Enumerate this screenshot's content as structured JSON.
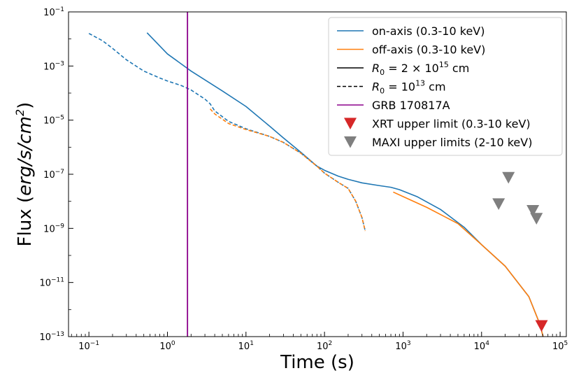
{
  "chart_data": {
    "type": "line",
    "xlabel": "Time (s)",
    "ylabel_prefix": "Flux (",
    "ylabel_unit": "erg/s/cm",
    "ylabel_exp": "2",
    "ylabel_suffix": ")",
    "xscale": "log",
    "yscale": "log",
    "xlim": [
      0.055,
      120000
    ],
    "ylim": [
      1e-13,
      0.1
    ],
    "x_ticks": [
      {
        "value": 0.1,
        "base": "10",
        "exp": "−1"
      },
      {
        "value": 1,
        "base": "10",
        "exp": "0"
      },
      {
        "value": 10,
        "base": "10",
        "exp": "1"
      },
      {
        "value": 100,
        "base": "10",
        "exp": "2"
      },
      {
        "value": 1000,
        "base": "10",
        "exp": "3"
      },
      {
        "value": 10000,
        "base": "10",
        "exp": "4"
      },
      {
        "value": 100000,
        "base": "10",
        "exp": "5"
      }
    ],
    "y_ticks": [
      {
        "value": 1e-13,
        "base": "10",
        "exp": "−13"
      },
      {
        "value": 1e-11,
        "base": "10",
        "exp": "−11"
      },
      {
        "value": 1e-09,
        "base": "10",
        "exp": "−9"
      },
      {
        "value": 1e-07,
        "base": "10",
        "exp": "−7"
      },
      {
        "value": 1e-05,
        "base": "10",
        "exp": "−5"
      },
      {
        "value": 0.001,
        "base": "10",
        "exp": "−3"
      },
      {
        "value": 0.1,
        "base": "10",
        "exp": "−1"
      }
    ],
    "grid": false,
    "legend_position": "top-right",
    "colors": {
      "on_axis": "#1f77b4",
      "off_axis": "#ff7f0e",
      "grb": "#8b008b",
      "xrt": "#d62728",
      "maxi": "#7f7f7f",
      "black": "#000000"
    },
    "series": [
      {
        "key": "on_solid",
        "color": "on_axis",
        "dash": false,
        "x": [
          0.55,
          1,
          2,
          5,
          10,
          20,
          30,
          50,
          80,
          100,
          150,
          200,
          300,
          500,
          700,
          900,
          1500,
          3000,
          6000,
          10000,
          20000,
          40000,
          55000,
          62000
        ],
        "y": [
          0.017,
          0.0028,
          0.00065,
          0.00012,
          3.2e-05,
          6e-06,
          2.2e-06,
          6.5e-07,
          2e-07,
          1.4e-07,
          8.5e-08,
          6.5e-08,
          4.8e-08,
          3.8e-08,
          3.3e-08,
          2.7e-08,
          1.5e-08,
          5e-09,
          1.1e-09,
          2.5e-10,
          4e-11,
          3e-12,
          3e-13,
          8e-14
        ]
      },
      {
        "key": "on_dashed",
        "color": "on_axis",
        "dash": true,
        "x": [
          0.1,
          0.15,
          0.2,
          0.3,
          0.5,
          0.8,
          1,
          1.5,
          2,
          3,
          3.5,
          4,
          6,
          10,
          20,
          30,
          50,
          80,
          100,
          150,
          200,
          250,
          300,
          330
        ],
        "y": [
          0.016,
          0.0085,
          0.0045,
          0.0017,
          0.00065,
          0.00036,
          0.00028,
          0.00019,
          0.00013,
          6e-05,
          4e-05,
          2.2e-05,
          9e-06,
          4.8e-06,
          2.5e-06,
          1.5e-06,
          6e-07,
          2e-07,
          1.1e-07,
          5e-08,
          3e-08,
          1e-08,
          2.5e-09,
          8e-10
        ]
      },
      {
        "key": "off_solid",
        "color": "off_axis",
        "dash": false,
        "x": [
          750,
          1000,
          2000,
          5000,
          10000,
          20000,
          40000,
          55000,
          62000
        ],
        "y": [
          2.2e-08,
          1.5e-08,
          6e-09,
          1.5e-09,
          2.5e-10,
          4e-11,
          3e-12,
          3e-13,
          8e-14
        ]
      },
      {
        "key": "off_dashed",
        "color": "off_axis",
        "dash": true,
        "x": [
          3.5,
          4,
          6,
          10,
          20,
          30,
          50,
          80,
          100,
          150,
          200,
          250,
          300,
          330
        ],
        "y": [
          2.6e-05,
          1.7e-05,
          7.5e-06,
          4.5e-06,
          2.5e-06,
          1.5e-06,
          6e-07,
          2e-07,
          1.1e-07,
          5e-08,
          3e-08,
          1e-08,
          2.5e-09,
          8e-10
        ]
      }
    ],
    "vline": {
      "x": 1.8,
      "color": "grb"
    },
    "upper_limits": [
      {
        "group": "xrt",
        "x": 58000,
        "y": 2.5e-13
      },
      {
        "group": "maxi",
        "x": 22000,
        "y": 7.5e-08
      },
      {
        "group": "maxi",
        "x": 16500,
        "y": 8e-09
      },
      {
        "group": "maxi",
        "x": 45000,
        "y": 4.5e-09
      },
      {
        "group": "maxi",
        "x": 50000,
        "y": 2.3e-09
      }
    ],
    "legend": [
      {
        "type": "line",
        "color": "on_axis",
        "dash": false,
        "label": "on-axis (0.3-10 keV)"
      },
      {
        "type": "line",
        "color": "off_axis",
        "dash": false,
        "label": "off-axis (0.3-10 keV)"
      },
      {
        "type": "line",
        "color": "black",
        "dash": false,
        "label_r": "R",
        "label_sub": "0",
        "label_mid": " = 2 × 10",
        "label_exp": "15",
        "label_end": " cm"
      },
      {
        "type": "line",
        "color": "black",
        "dash": true,
        "label_r": "R",
        "label_sub": "0",
        "label_mid": " = 10",
        "label_exp": "13",
        "label_end": " cm"
      },
      {
        "type": "line",
        "color": "grb",
        "dash": false,
        "label": "GRB 170817A"
      },
      {
        "type": "marker",
        "color": "xrt",
        "label": "XRT upper limit (0.3-10 keV)"
      },
      {
        "type": "marker",
        "color": "maxi",
        "label": "MAXI upper limits (2-10 keV)"
      }
    ]
  }
}
